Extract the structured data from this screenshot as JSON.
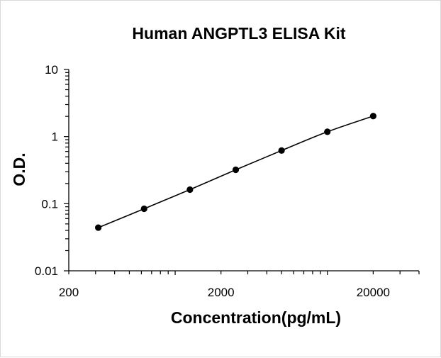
{
  "chart_data": {
    "type": "scatter",
    "title": "Human ANGPTL3 ELISA Kit",
    "xlabel": "Concentration(pg/mL)",
    "ylabel": "O.D.",
    "x_scale": "log",
    "y_scale": "log",
    "xlim": [
      200,
      40000
    ],
    "ylim": [
      0.01,
      10
    ],
    "x_ticks": [
      {
        "value": 200,
        "label": "200"
      },
      {
        "value": 2000,
        "label": "2000"
      },
      {
        "value": 20000,
        "label": "20000"
      }
    ],
    "y_ticks": [
      {
        "value": 10,
        "label": "10"
      },
      {
        "value": 1,
        "label": "1"
      },
      {
        "value": 0.1,
        "label": "0.1"
      },
      {
        "value": 0.01,
        "label": "0.01"
      }
    ],
    "grid": false,
    "legend": "none",
    "colors": {
      "series": "#000000",
      "axis": "#000000"
    },
    "series": [
      {
        "x": [
          312.5,
          625,
          1250,
          2500,
          5000,
          10000,
          20000
        ],
        "y": [
          0.044,
          0.084,
          0.162,
          0.32,
          0.62,
          1.18,
          2.02
        ]
      }
    ]
  }
}
